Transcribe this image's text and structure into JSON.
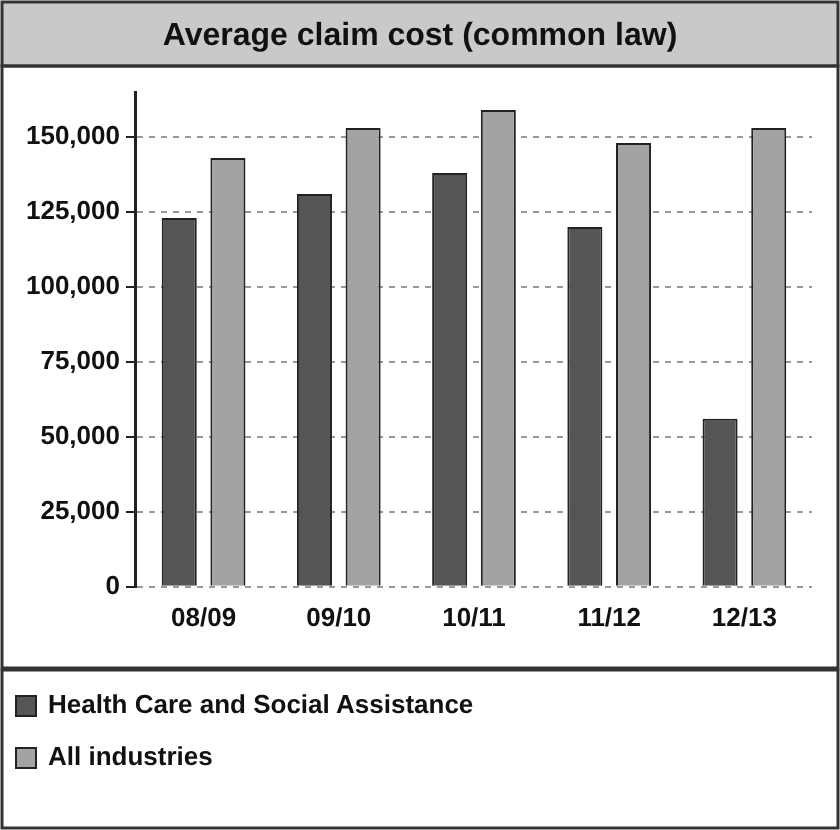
{
  "chart_data": {
    "type": "bar",
    "title": "Average claim cost (common law)",
    "categories": [
      "08/09",
      "09/10",
      "10/11",
      "11/12",
      "12/13"
    ],
    "series": [
      {
        "name": "Health Care and Social Assistance",
        "color": "#555555",
        "values": [
          123000,
          131000,
          138000,
          120000,
          56000
        ]
      },
      {
        "name": "All industries",
        "color": "#a3a3a3",
        "values": [
          143000,
          153000,
          159000,
          148000,
          153000
        ]
      }
    ],
    "ylim": [
      0,
      165000
    ],
    "yticks": [
      0,
      {
        "value": 25000,
        "label": "25,000"
      },
      {
        "value": 50000,
        "label": "50,000"
      },
      {
        "value": 75000,
        "label": "75,000"
      },
      {
        "value": 100000,
        "label": "100,000"
      },
      {
        "value": 125000,
        "label": "125,000"
      },
      {
        "value": 150000,
        "label": "150,000"
      }
    ],
    "grid": "y",
    "legend": "bottom left"
  }
}
